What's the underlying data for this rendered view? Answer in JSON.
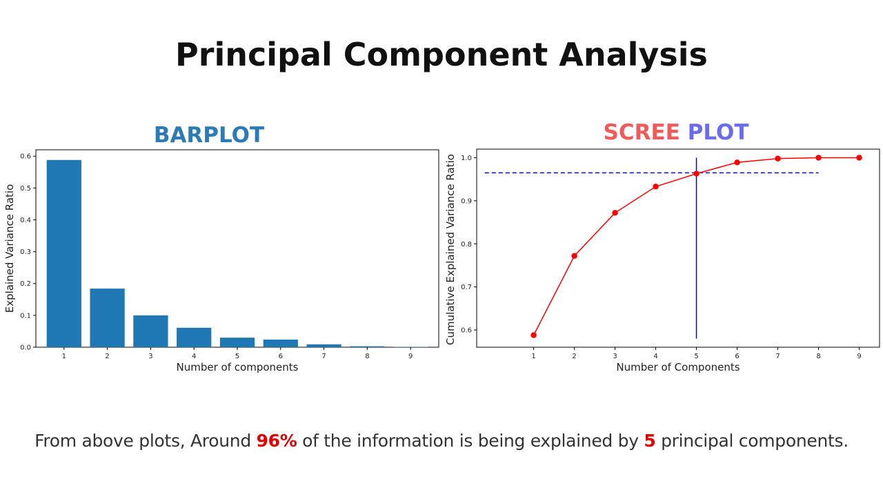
{
  "slide": {
    "title": "Principal Component Analysis",
    "footer": {
      "part1": "From above plots, Around ",
      "highlight1": "96%",
      "part2": " of the information is being explained by ",
      "highlight2": "5",
      "part3": " principal components."
    },
    "colors": {
      "bar": "#1f77b4",
      "line": "#ff0000",
      "threshold": "#0000ff",
      "highlight": "#e00000"
    }
  },
  "chart_data": [
    {
      "type": "bar",
      "title": "BARPLOT",
      "categories": [
        "1",
        "2",
        "3",
        "4",
        "5",
        "6",
        "7",
        "8",
        "9"
      ],
      "values": [
        0.588,
        0.184,
        0.1,
        0.061,
        0.03,
        0.024,
        0.009,
        0.003,
        0.001
      ],
      "xlabel": "Number of components",
      "ylabel": "Explained Variance Ratio",
      "ylim": [
        0,
        0.62
      ],
      "yticks": [
        "0.0",
        "0.1",
        "0.2",
        "0.3",
        "0.4",
        "0.5",
        "0.6"
      ],
      "grid": false
    },
    {
      "type": "line",
      "title_parts": [
        "SCREE",
        "PLOT"
      ],
      "x": [
        1,
        2,
        3,
        4,
        5,
        6,
        7,
        8,
        9
      ],
      "y": [
        0.588,
        0.772,
        0.872,
        0.933,
        0.963,
        0.989,
        0.998,
        1.0,
        1.0
      ],
      "xlabel": "Number of Components",
      "ylabel": "Cumulative Explained Variance Ratio",
      "xticks": [
        "1",
        "2",
        "3",
        "4",
        "5",
        "6",
        "7",
        "8",
        "9"
      ],
      "yticks": [
        "0.6",
        "0.7",
        "0.8",
        "0.9",
        "1.0"
      ],
      "xlim": [
        -0.4,
        9.5
      ],
      "ylim": [
        0.56,
        1.02
      ],
      "hline": {
        "y": 0.965,
        "xmin": -0.2,
        "xmax": 8.0
      },
      "vline": {
        "x": 5,
        "ymin": 0.58,
        "ymax": 1.0
      },
      "grid": false
    }
  ]
}
